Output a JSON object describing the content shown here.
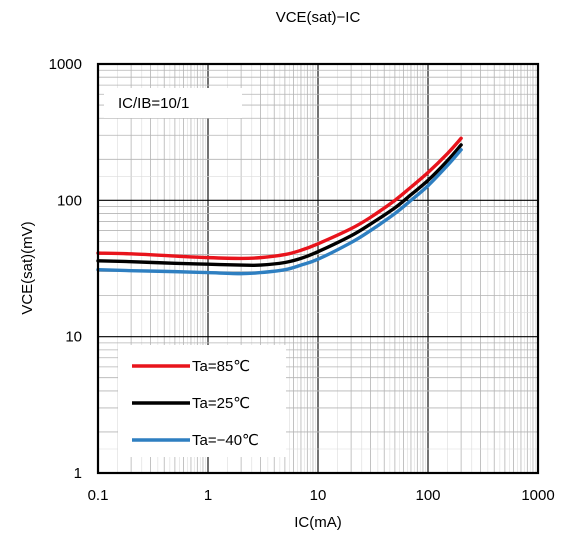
{
  "chart_data": {
    "type": "line",
    "title": "VCE(sat)−IC",
    "xlabel": "IC(mA)",
    "ylabel": "VCE(sat)(mV)",
    "xscale": "log",
    "yscale": "log",
    "xlim": [
      0.1,
      1000
    ],
    "ylim": [
      1,
      1000
    ],
    "x_ticks": [
      "0.1",
      "1",
      "10",
      "100",
      "1000"
    ],
    "y_ticks": [
      "1",
      "10",
      "100",
      "1000"
    ],
    "grid": true,
    "legend_position": "bottom-left",
    "annotation": "IC/IB=10/1",
    "series": [
      {
        "name": "Ta=85℃",
        "color": "#e8141c",
        "points": [
          [
            0.1,
            41
          ],
          [
            0.2,
            40.5
          ],
          [
            0.5,
            39
          ],
          [
            1,
            38
          ],
          [
            2,
            37.5
          ],
          [
            3,
            38
          ],
          [
            5,
            40
          ],
          [
            7,
            43
          ],
          [
            10,
            48
          ],
          [
            20,
            62
          ],
          [
            30,
            75
          ],
          [
            50,
            100
          ],
          [
            70,
            125
          ],
          [
            100,
            160
          ],
          [
            150,
            220
          ],
          [
            200,
            285
          ]
        ]
      },
      {
        "name": "Ta=25℃",
        "color": "#000000",
        "points": [
          [
            0.1,
            36
          ],
          [
            0.2,
            35.5
          ],
          [
            0.5,
            34.5
          ],
          [
            1,
            34
          ],
          [
            2,
            33.5
          ],
          [
            3,
            33.5
          ],
          [
            5,
            35
          ],
          [
            7,
            37.5
          ],
          [
            10,
            42
          ],
          [
            20,
            55
          ],
          [
            30,
            67
          ],
          [
            50,
            88
          ],
          [
            70,
            110
          ],
          [
            100,
            140
          ],
          [
            150,
            195
          ],
          [
            200,
            255
          ]
        ]
      },
      {
        "name": "Ta=−40℃",
        "color": "#2e7fc1",
        "points": [
          [
            0.1,
            31
          ],
          [
            0.2,
            30.5
          ],
          [
            0.5,
            30
          ],
          [
            1,
            29.5
          ],
          [
            2,
            29
          ],
          [
            3,
            29.5
          ],
          [
            5,
            31
          ],
          [
            7,
            33.5
          ],
          [
            10,
            37
          ],
          [
            20,
            49
          ],
          [
            30,
            60
          ],
          [
            50,
            80
          ],
          [
            70,
            100
          ],
          [
            100,
            128
          ],
          [
            150,
            180
          ],
          [
            200,
            235
          ]
        ]
      }
    ]
  }
}
